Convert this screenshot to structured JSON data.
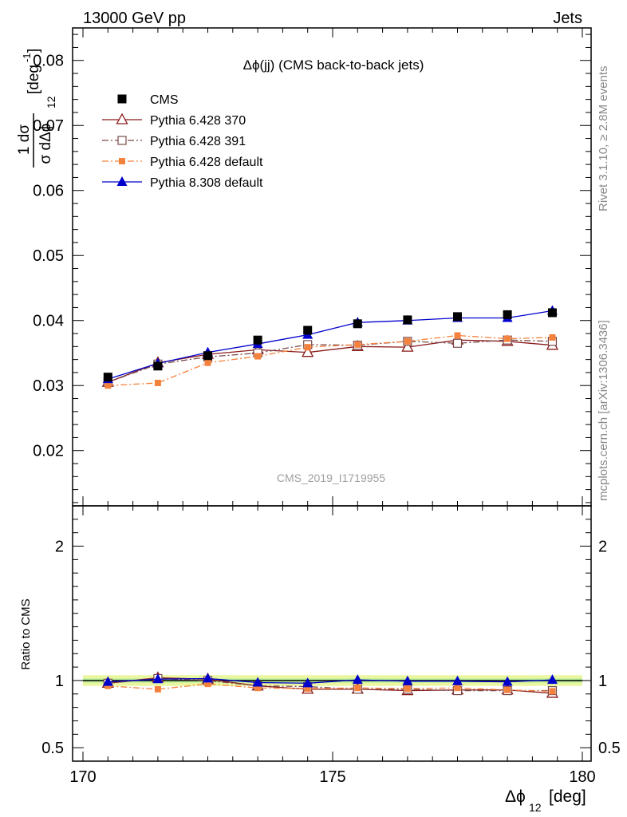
{
  "header": {
    "left": "13000 GeV pp",
    "right": "Jets"
  },
  "side_labels": {
    "rivet": "Rivet 3.1.10, ≥ 2.8M events",
    "mcplots": "mcplots.cern.ch [arXiv:1306.3436]"
  },
  "chart_data": [
    {
      "type": "line",
      "panel": "main",
      "title": "Δϕ(jj) (CMS back-to-back jets)",
      "watermark": "CMS_2019_I1719955",
      "ylabel_num": "1 dσ",
      "ylabel_den": "σ dΔϕ",
      "ylabel_den_sub": "12",
      "ylabel_unit": "[deg",
      "ylabel_unit_sup": "-1",
      "ylabel_unit_end": "]",
      "xlim": [
        170,
        180
      ],
      "ylim": [
        0.0115,
        0.085
      ],
      "yticks": [
        "0.02",
        "0.03",
        "0.04",
        "0.05",
        "0.06",
        "0.07",
        "0.08"
      ],
      "ytick_values": [
        0.02,
        0.03,
        0.04,
        0.05,
        0.06,
        0.07,
        0.08
      ],
      "x": [
        170.5,
        171.5,
        172.5,
        173.5,
        174.5,
        175.5,
        176.5,
        177.5,
        178.5,
        179.4
      ],
      "series": [
        {
          "name": "CMS",
          "color": "#000000",
          "marker": "square",
          "line": "none",
          "values": [
            0.0313,
            0.033,
            0.0346,
            0.037,
            0.0385,
            0.0395,
            0.0401,
            0.0406,
            0.0409,
            0.0412
          ]
        },
        {
          "name": "Pythia 6.428 370",
          "color": "#8b1a1a",
          "marker": "triangle-open",
          "line": "solid",
          "values": [
            0.0305,
            0.0335,
            0.0348,
            0.0355,
            0.0351,
            0.036,
            0.0359,
            0.037,
            0.0368,
            0.0362
          ]
        },
        {
          "name": "Pythia 6.428 391",
          "color": "#7a4a4a",
          "marker": "square-open",
          "line": "dashdot",
          "values": [
            0.0305,
            0.0333,
            0.0344,
            0.035,
            0.0363,
            0.0362,
            0.0368,
            0.0365,
            0.037,
            0.0368
          ]
        },
        {
          "name": "Pythia 6.428 default",
          "color": "#f5823c",
          "marker": "square-small",
          "line": "dashdot",
          "values": [
            0.03,
            0.0304,
            0.0335,
            0.0345,
            0.0359,
            0.0363,
            0.0368,
            0.0377,
            0.0372,
            0.0374
          ]
        },
        {
          "name": "Pythia 8.308 default",
          "color": "#0000cc",
          "marker": "triangle",
          "line": "solid",
          "values": [
            0.031,
            0.0334,
            0.0351,
            0.0364,
            0.0378,
            0.0397,
            0.04,
            0.0404,
            0.0404,
            0.0415
          ]
        }
      ]
    },
    {
      "type": "line",
      "panel": "ratio",
      "ylabel": "Ratio to CMS",
      "xlabel": "Δϕ",
      "xlabel_sub": "12",
      "xlabel_unit": "[deg]",
      "xlim": [
        170,
        180
      ],
      "ylim": [
        0.4,
        2.3
      ],
      "xticks": [
        "170",
        "175",
        "180"
      ],
      "xtick_values": [
        170,
        175,
        180
      ],
      "yticks": [
        "0.5",
        "1",
        "2"
      ],
      "ytick_values": [
        0.5,
        1,
        2
      ],
      "band_inner": [
        0.985,
        1.015
      ],
      "band_outer": [
        0.96,
        1.04
      ],
      "x": [
        170.5,
        171.5,
        172.5,
        173.5,
        174.5,
        175.5,
        176.5,
        177.5,
        178.5,
        179.4
      ],
      "series": [
        {
          "name": "Pythia 6.428 370",
          "values": [
            0.98,
            1.02,
            1.01,
            0.96,
            0.935,
            0.935,
            0.925,
            0.93,
            0.93,
            0.905
          ]
        },
        {
          "name": "Pythia 6.428 391",
          "values": [
            0.98,
            1.015,
            1.0,
            0.96,
            0.955,
            0.935,
            0.935,
            0.925,
            0.925,
            0.925
          ]
        },
        {
          "name": "Pythia 6.428 default",
          "values": [
            0.96,
            0.935,
            0.975,
            0.945,
            0.94,
            0.945,
            0.94,
            0.945,
            0.93,
            0.92
          ]
        },
        {
          "name": "Pythia 8.308 default",
          "values": [
            0.99,
            1.01,
            1.015,
            0.985,
            0.98,
            1.005,
            0.995,
            0.995,
            0.99,
            1.005
          ]
        }
      ]
    }
  ]
}
